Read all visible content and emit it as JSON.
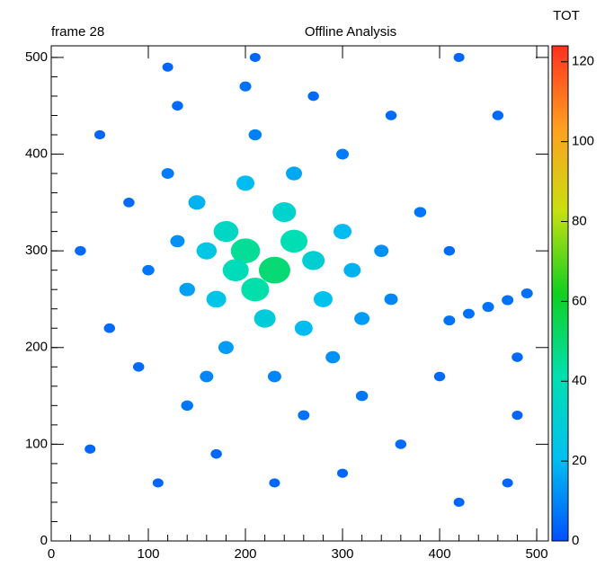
{
  "chart_data": {
    "type": "scatter",
    "title": "Offline Analysis",
    "subtitle": "frame 28",
    "colorbar_label": "TOT",
    "x": [
      200,
      230,
      250,
      180,
      210,
      270,
      190,
      240,
      220,
      160,
      280,
      300,
      170,
      260,
      150,
      310,
      200,
      250,
      140,
      320,
      180,
      290,
      130,
      340,
      230,
      160,
      350,
      120,
      300,
      210,
      100,
      380,
      140,
      320,
      260,
      80,
      410,
      60,
      30,
      130,
      350,
      270,
      90,
      400,
      170,
      300,
      230,
      50,
      460,
      480,
      480,
      420,
      120,
      210,
      420,
      40,
      470,
      360,
      110,
      200,
      410,
      430,
      450,
      470,
      490
    ],
    "y": [
      300,
      280,
      310,
      320,
      260,
      290,
      280,
      340,
      230,
      300,
      250,
      320,
      250,
      220,
      350,
      280,
      370,
      380,
      260,
      230,
      200,
      190,
      310,
      300,
      170,
      170,
      250,
      380,
      400,
      420,
      280,
      340,
      140,
      150,
      130,
      350,
      300,
      220,
      300,
      450,
      440,
      460,
      180,
      170,
      90,
      70,
      60,
      420,
      440,
      130,
      190,
      40,
      490,
      500,
      500,
      95,
      60,
      100,
      60,
      470,
      228,
      235,
      242,
      249,
      256
    ],
    "values": [
      45,
      50,
      40,
      35,
      42,
      30,
      38,
      32,
      28,
      25,
      22,
      20,
      24,
      20,
      18,
      18,
      20,
      16,
      15,
      14,
      14,
      12,
      12,
      12,
      10,
      10,
      10,
      8,
      8,
      9,
      7,
      7,
      7,
      7,
      6,
      5,
      5,
      5,
      5,
      5,
      5,
      5,
      5,
      5,
      5,
      4,
      4,
      4,
      5,
      4,
      5,
      4,
      4,
      4,
      4,
      4,
      4,
      5,
      4,
      6,
      6,
      6,
      6,
      6,
      6
    ],
    "xlim": [
      0,
      512
    ],
    "ylim": [
      0,
      512
    ],
    "zlim": [
      0,
      124
    ],
    "xticks": [
      0,
      100,
      200,
      300,
      400,
      500
    ],
    "yticks": [
      0,
      100,
      200,
      300,
      400,
      500
    ],
    "zticks": [
      0,
      20,
      40,
      60,
      80,
      100,
      120
    ],
    "colormap": [
      "#0050ff",
      "#00c0f0",
      "#00e0b0",
      "#10d020",
      "#c8e010",
      "#ffa020",
      "#ff3020"
    ]
  }
}
